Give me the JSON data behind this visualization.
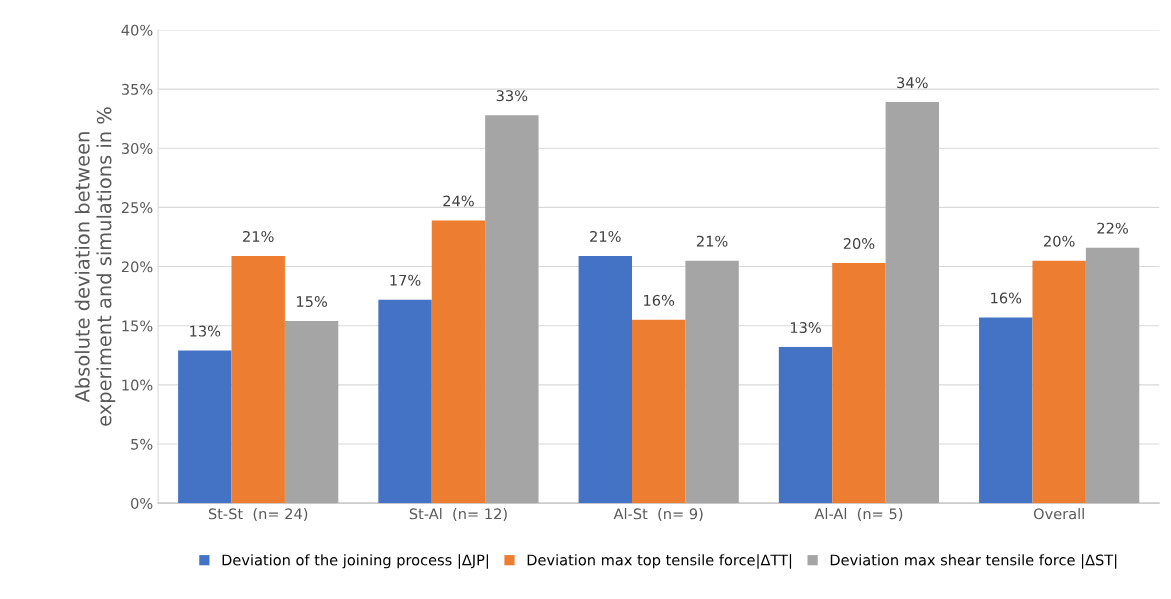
{
  "chart_data": {
    "type": "bar",
    "ylabel": "Absolute deviation between\nexperiment and simulations in %",
    "categories": [
      "St-St  (n= 24)",
      "St-Al  (n= 12)",
      "Al-St  (n= 9)",
      "Al-Al  (n= 5)",
      "Overall"
    ],
    "series": [
      {
        "name": "Deviation of the joining process |ΔJP|",
        "color": "#4472c4",
        "values": [
          12.9,
          17.2,
          20.9,
          13.2,
          15.7
        ],
        "value_labels": [
          "13%",
          "17%",
          "21%",
          "13%",
          "16%"
        ]
      },
      {
        "name": "Deviation max top tensile force|ΔTT|",
        "color": "#ed7d31",
        "values": [
          20.9,
          23.9,
          15.5,
          20.3,
          20.5
        ],
        "value_labels": [
          "21%",
          "24%",
          "16%",
          "20%",
          "20%"
        ]
      },
      {
        "name": "Deviation max shear tensile force |ΔST|",
        "color": "#a5a5a5",
        "values": [
          15.4,
          32.8,
          20.5,
          33.9,
          21.6
        ],
        "value_labels": [
          "15%",
          "33%",
          "21%",
          "34%",
          "22%"
        ]
      }
    ],
    "ylim": [
      0,
      40
    ],
    "yticks": [
      {
        "value": 0,
        "label": "0%"
      },
      {
        "value": 5,
        "label": "5%"
      },
      {
        "value": 10,
        "label": "10%"
      },
      {
        "value": 15,
        "label": "15%"
      },
      {
        "value": 20,
        "label": "20%"
      },
      {
        "value": 25,
        "label": "25%"
      },
      {
        "value": 30,
        "label": "30%"
      },
      {
        "value": 35,
        "label": "35%"
      },
      {
        "value": 40,
        "label": "40%"
      }
    ],
    "grid": "y",
    "legend": "bottom"
  }
}
